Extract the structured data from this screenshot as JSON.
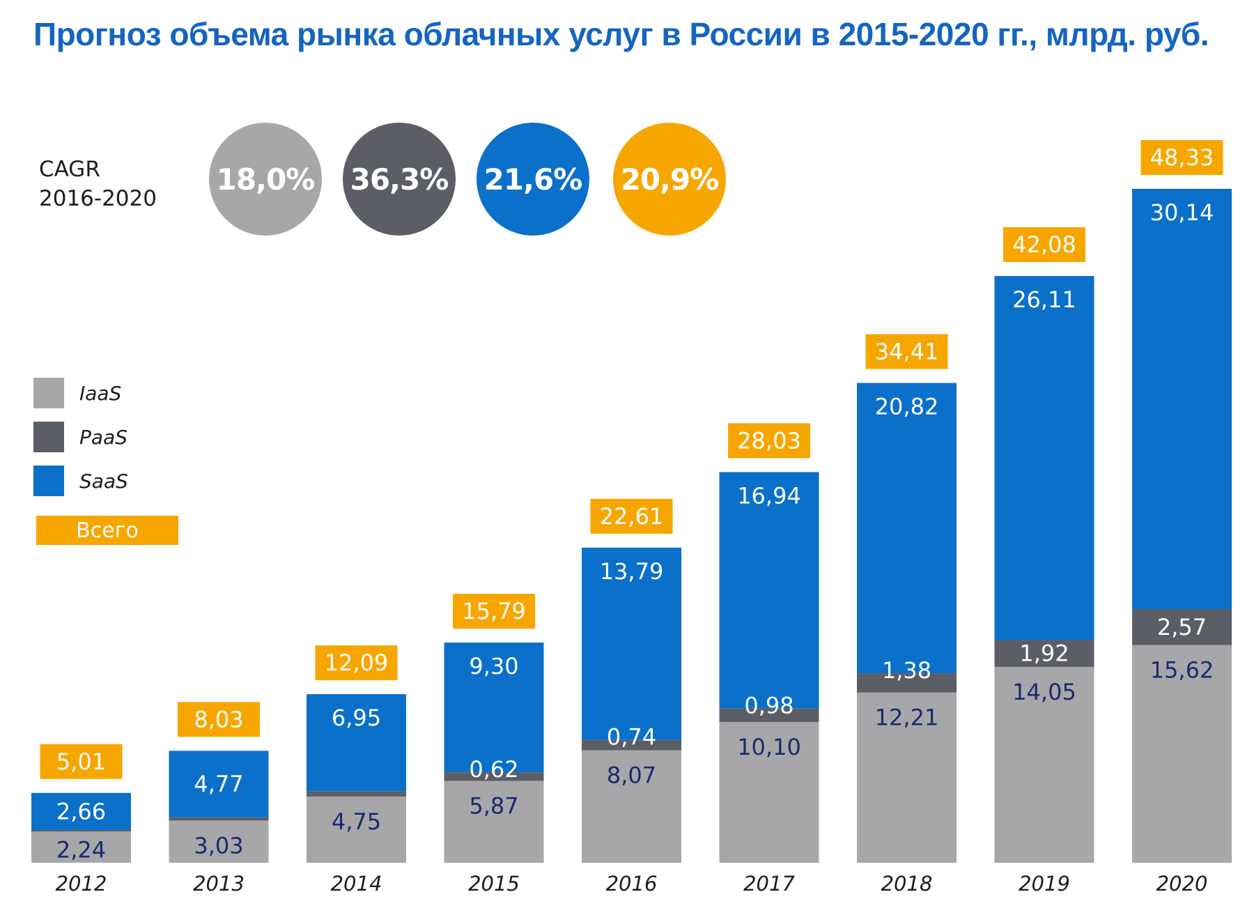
{
  "title": "Прогноз объема рынка облачных услуг в России в 2015-2020 гг., млрд. руб.",
  "colors": {
    "iaas": "#a7a7aa",
    "paas": "#5c5e66",
    "saas": "#0b70c9",
    "total": "#f7a600",
    "title": "#1565c0",
    "iaas_label": "#1a2a6c",
    "light_label": "#ffffff"
  },
  "cagr": {
    "label_line1": "CAGR",
    "label_line2": "2016-2020",
    "circles": [
      {
        "value": "18,0%",
        "color": "#a7a7aa"
      },
      {
        "value": "36,3%",
        "color": "#5c5e66"
      },
      {
        "value": "21,6%",
        "color": "#0b70c9"
      },
      {
        "value": "20,9%",
        "color": "#f7a600"
      }
    ]
  },
  "legend": {
    "iaas": "IaaS",
    "paas": "PaaS",
    "saas": "SaaS",
    "total": "Всего"
  },
  "chart_data": {
    "type": "bar",
    "stacked": true,
    "categories": [
      "2012",
      "2013",
      "2014",
      "2015",
      "2016",
      "2017",
      "2018",
      "2019",
      "2020"
    ],
    "series": [
      {
        "name": "IaaS",
        "values": [
          2.24,
          3.03,
          4.75,
          5.87,
          8.07,
          10.1,
          12.21,
          14.05,
          15.62
        ],
        "labels": [
          "2,24",
          "3,03",
          "4,75",
          "5,87",
          "8,07",
          "10,10",
          "12,21",
          "14,05",
          "15,62"
        ]
      },
      {
        "name": "PaaS",
        "values": [
          0.11,
          0.23,
          0.39,
          0.62,
          0.74,
          0.98,
          1.38,
          1.92,
          2.57
        ],
        "labels": [
          "",
          "",
          "",
          "0,62",
          "0,74",
          "0,98",
          "1,38",
          "1,92",
          "2,57"
        ]
      },
      {
        "name": "SaaS",
        "values": [
          2.66,
          4.77,
          6.95,
          9.3,
          13.79,
          16.94,
          20.82,
          26.11,
          30.14
        ],
        "labels": [
          "2,66",
          "4,77",
          "6,95",
          "9,30",
          "13,79",
          "16,94",
          "20,82",
          "26,11",
          "30,14"
        ]
      }
    ],
    "totals": [
      5.01,
      8.03,
      12.09,
      15.79,
      22.61,
      28.03,
      34.41,
      42.08,
      48.33
    ],
    "total_labels": [
      "5,01",
      "8,03",
      "12,09",
      "15,79",
      "22,61",
      "28,03",
      "34,41",
      "42,08",
      "48,33"
    ],
    "ylim": [
      0,
      48.33
    ],
    "grid": false,
    "legend_position": "left"
  }
}
